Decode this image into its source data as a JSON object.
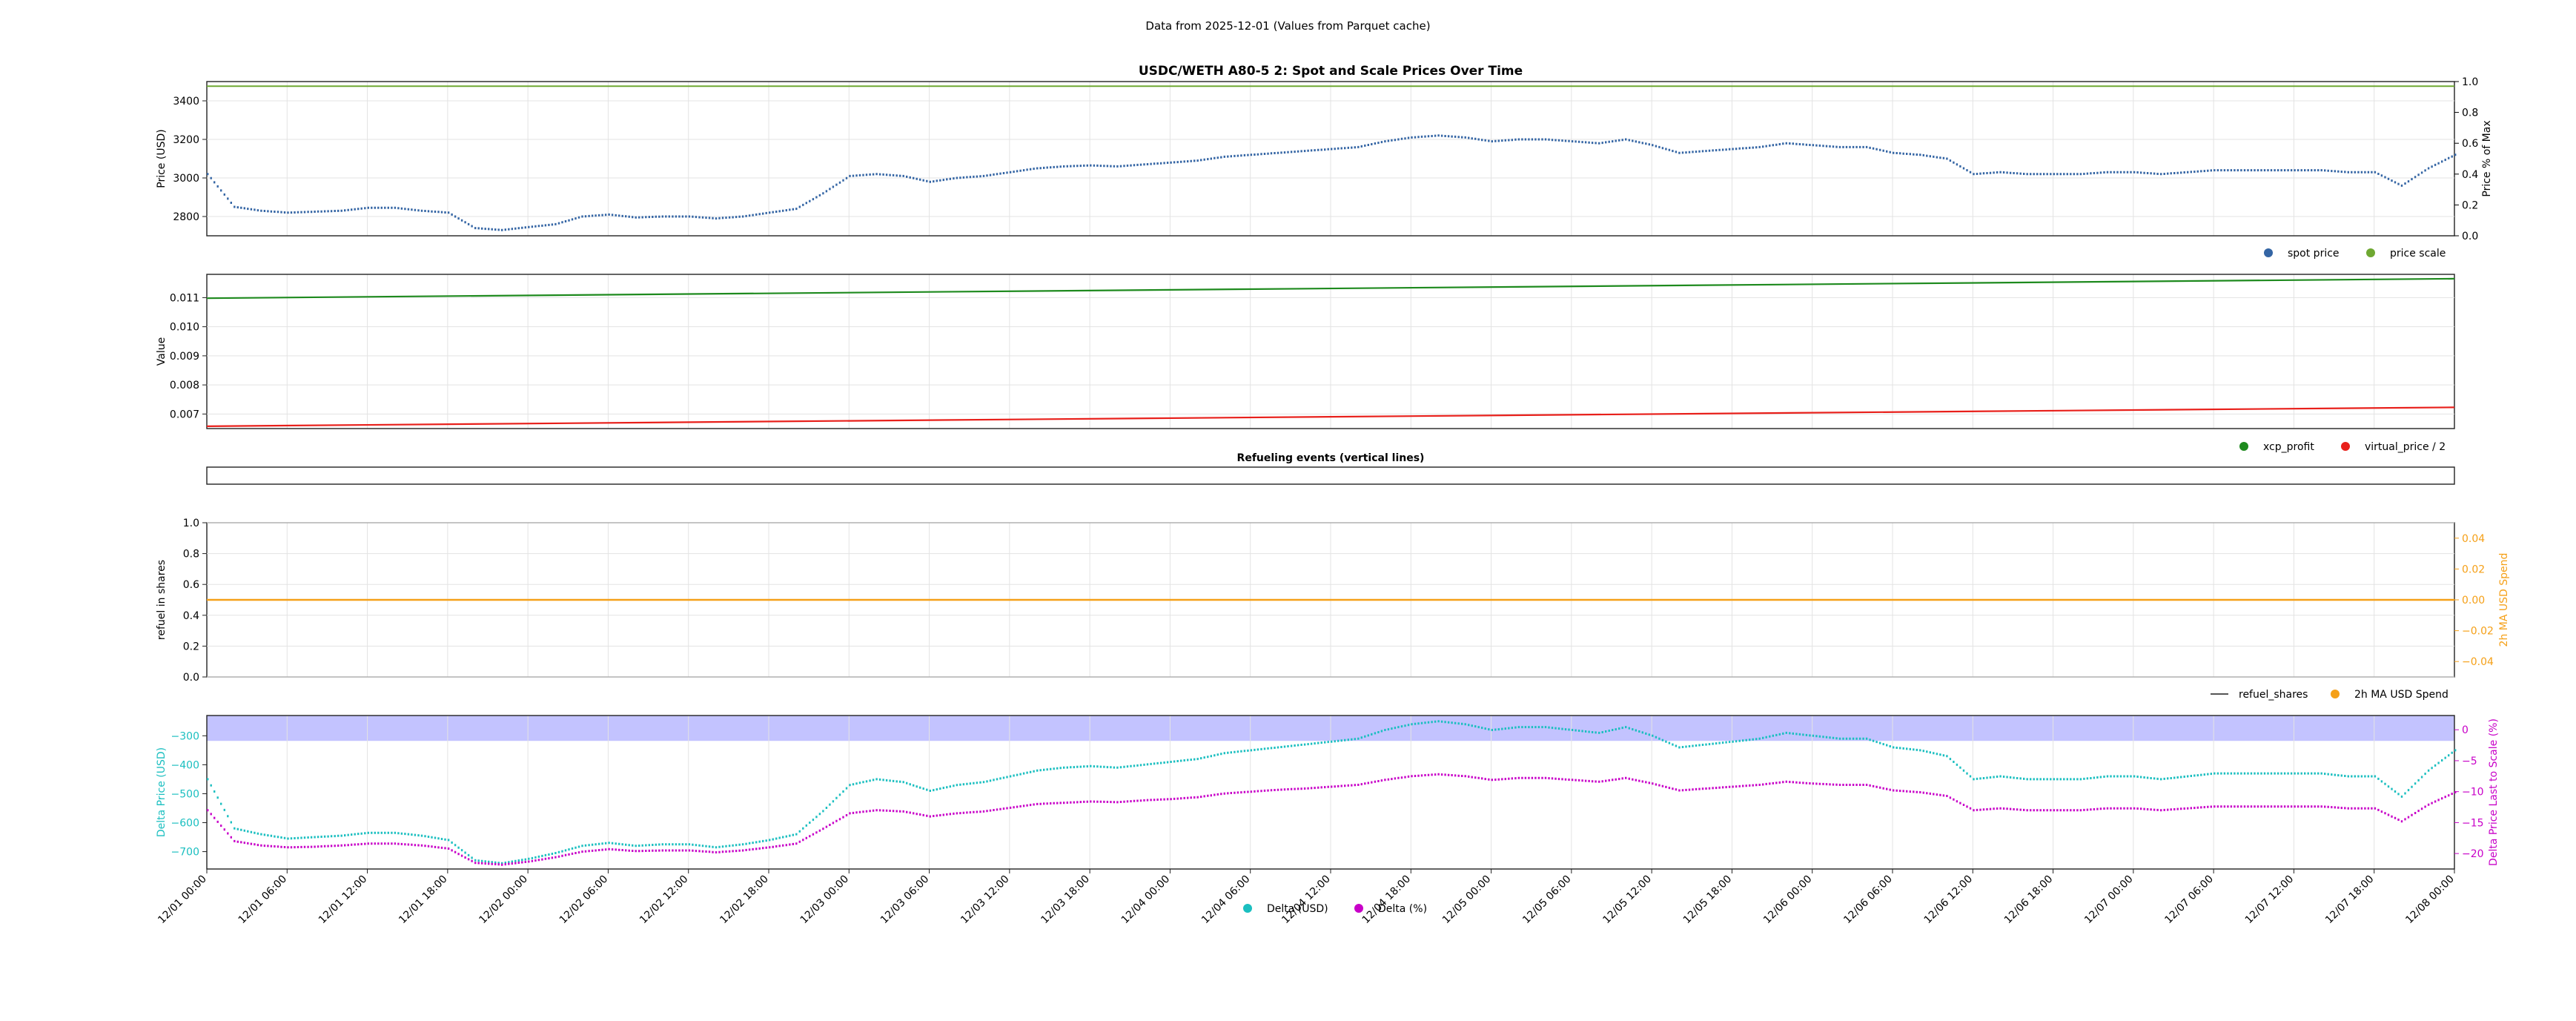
{
  "suptitle": "Data from 2025-12-01 (Values from Parquet cache)",
  "colors": {
    "spot": "#3465a4",
    "scale": "#6fa832",
    "xcp": "#1e8a1e",
    "virtual": "#e8201b",
    "refuel": "#555555",
    "ma_spend": "#f5a018",
    "delta_usd": "#1bbfc0",
    "delta_pct": "#c800c8",
    "band": "#aaaaff"
  },
  "chart_data": [
    {
      "type": "line",
      "title": "USDC/WETH A80-5 2: Spot and Scale Prices Over Time",
      "ylabel": "Price (USD)",
      "ylim": [
        2700,
        3500
      ],
      "yticks": [
        2800,
        3000,
        3200,
        3400
      ],
      "y2label": "Price % of Max",
      "y2lim": [
        0,
        1
      ],
      "y2ticks": [
        "0.0",
        "0.2",
        "0.4",
        "0.6",
        "0.8",
        "1.0"
      ],
      "legend": "bottom-right",
      "series": [
        {
          "name": "spot price",
          "style": "points",
          "x_hours": [
            0,
            2,
            4,
            6,
            8,
            10,
            12,
            14,
            16,
            18,
            20,
            22,
            24,
            26,
            28,
            30,
            32,
            34,
            36,
            38,
            40,
            42,
            44,
            46,
            48,
            50,
            52,
            54,
            56,
            58,
            60,
            62,
            64,
            66,
            68,
            70,
            72,
            74,
            76,
            78,
            80,
            82,
            84,
            86,
            88,
            90,
            92,
            94,
            96,
            98,
            100,
            102,
            104,
            106,
            108,
            110,
            112,
            114,
            116,
            118,
            120,
            122,
            124,
            126,
            128,
            130,
            132,
            134,
            136,
            138,
            140,
            142,
            144,
            146,
            148,
            150,
            152,
            154,
            156,
            158,
            160,
            162,
            164,
            166,
            168
          ],
          "values": [
            3020,
            2850,
            2830,
            2820,
            2825,
            2830,
            2845,
            2845,
            2830,
            2820,
            2740,
            2730,
            2745,
            2760,
            2800,
            2810,
            2795,
            2800,
            2800,
            2790,
            2800,
            2820,
            2840,
            2920,
            3010,
            3020,
            3010,
            2980,
            3000,
            3010,
            3030,
            3050,
            3060,
            3065,
            3060,
            3070,
            3080,
            3090,
            3110,
            3120,
            3130,
            3140,
            3150,
            3160,
            3190,
            3210,
            3220,
            3210,
            3190,
            3200,
            3200,
            3190,
            3180,
            3200,
            3170,
            3130,
            3140,
            3150,
            3160,
            3180,
            3170,
            3160,
            3160,
            3130,
            3120,
            3100,
            3020,
            3030,
            3020,
            3020,
            3020,
            3030,
            3030,
            3020,
            3030,
            3040,
            3040,
            3040,
            3040,
            3040,
            3030,
            3030,
            2960,
            3050,
            3120
          ]
        },
        {
          "name": "price scale",
          "style": "line",
          "values_pct": [
            0.97,
            0.97
          ]
        }
      ]
    },
    {
      "type": "line",
      "ylabel": "Value",
      "ylim": [
        0.0065,
        0.0118
      ],
      "yticks": [
        "0.007",
        "0.008",
        "0.009",
        "0.010",
        "0.011"
      ],
      "legend": "bottom-right",
      "series": [
        {
          "name": "xcp_profit",
          "x_hours": [
            0,
            168
          ],
          "values": [
            0.01098,
            0.01165
          ]
        },
        {
          "name": "virtual_price / 2",
          "x_hours": [
            0,
            168
          ],
          "values": [
            0.00658,
            0.00723
          ]
        }
      ]
    },
    {
      "type": "line",
      "title": "Refueling events (vertical lines)",
      "series": []
    },
    {
      "type": "line",
      "ylabel": "refuel in shares",
      "ylim": [
        0,
        1
      ],
      "yticks": [
        "0.0",
        "0.2",
        "0.4",
        "0.6",
        "0.8",
        "1.0"
      ],
      "y2label": "2h MA USD Spend",
      "y2lim": [
        -0.05,
        0.05
      ],
      "y2ticks": [
        "−0.04",
        "−0.02",
        "0.00",
        "0.02",
        "0.04"
      ],
      "legend": "bottom-right",
      "series": [
        {
          "name": "refuel_shares",
          "x_hours": [],
          "values": []
        },
        {
          "name": "2h MA USD Spend",
          "x_hours": [
            0,
            168
          ],
          "values": [
            0,
            0
          ]
        }
      ]
    },
    {
      "type": "line",
      "ylabel": "Delta Price (USD)",
      "ylim": [
        -760,
        -230
      ],
      "yticks": [
        "−700",
        "−600",
        "−500",
        "−400",
        "−300"
      ],
      "y2label": "Delta Price Last to Scale (%)",
      "y2lim": [
        -22.5,
        2.3
      ],
      "y2ticks": [
        "−20",
        "−15",
        "−10",
        "−5",
        "0"
      ],
      "legend": "bottom-center",
      "band_pct": [
        -1.8,
        2.3
      ],
      "series": [
        {
          "name": "Delta (USD)",
          "x_hours": [
            0,
            2,
            4,
            6,
            8,
            10,
            12,
            14,
            16,
            18,
            20,
            22,
            24,
            26,
            28,
            30,
            32,
            34,
            36,
            38,
            40,
            42,
            44,
            46,
            48,
            50,
            52,
            54,
            56,
            58,
            60,
            62,
            64,
            66,
            68,
            70,
            72,
            74,
            76,
            78,
            80,
            82,
            84,
            86,
            88,
            90,
            92,
            94,
            96,
            98,
            100,
            102,
            104,
            106,
            108,
            110,
            112,
            114,
            116,
            118,
            120,
            122,
            124,
            126,
            128,
            130,
            132,
            134,
            136,
            138,
            140,
            142,
            144,
            146,
            148,
            150,
            152,
            154,
            156,
            158,
            160,
            162,
            164,
            166,
            168
          ],
          "values": [
            -450,
            -620,
            -640,
            -655,
            -650,
            -645,
            -635,
            -635,
            -645,
            -660,
            -730,
            -740,
            -725,
            -705,
            -680,
            -670,
            -680,
            -675,
            -675,
            -685,
            -675,
            -660,
            -640,
            -560,
            -470,
            -450,
            -460,
            -490,
            -470,
            -460,
            -440,
            -420,
            -410,
            -405,
            -410,
            -400,
            -390,
            -380,
            -360,
            -350,
            -340,
            -330,
            -320,
            -310,
            -280,
            -260,
            -250,
            -260,
            -280,
            -270,
            -270,
            -280,
            -290,
            -270,
            -300,
            -340,
            -330,
            -320,
            -310,
            -290,
            -300,
            -310,
            -310,
            -340,
            -350,
            -370,
            -450,
            -440,
            -450,
            -450,
            -450,
            -440,
            -440,
            -450,
            -440,
            -430,
            -430,
            -430,
            -430,
            -430,
            -440,
            -440,
            -510,
            -420,
            -350
          ]
        },
        {
          "name": "Delta (%)",
          "x_hours": [
            0,
            2,
            4,
            6,
            8,
            10,
            12,
            14,
            16,
            18,
            20,
            22,
            24,
            26,
            28,
            30,
            32,
            34,
            36,
            38,
            40,
            42,
            44,
            46,
            48,
            50,
            52,
            54,
            56,
            58,
            60,
            62,
            64,
            66,
            68,
            70,
            72,
            74,
            76,
            78,
            80,
            82,
            84,
            86,
            88,
            90,
            92,
            94,
            96,
            98,
            100,
            102,
            104,
            106,
            108,
            110,
            112,
            114,
            116,
            118,
            120,
            122,
            124,
            126,
            128,
            130,
            132,
            134,
            136,
            138,
            140,
            142,
            144,
            146,
            148,
            150,
            152,
            154,
            156,
            158,
            160,
            162,
            164,
            166,
            168
          ],
          "values": [
            -13.0,
            -18.0,
            -18.7,
            -19.0,
            -18.9,
            -18.7,
            -18.4,
            -18.4,
            -18.7,
            -19.2,
            -21.5,
            -21.8,
            -21.3,
            -20.6,
            -19.7,
            -19.3,
            -19.6,
            -19.5,
            -19.5,
            -19.8,
            -19.5,
            -19.0,
            -18.4,
            -16.0,
            -13.5,
            -13.0,
            -13.2,
            -14.0,
            -13.5,
            -13.2,
            -12.6,
            -12.0,
            -11.8,
            -11.6,
            -11.7,
            -11.4,
            -11.2,
            -10.9,
            -10.3,
            -10.0,
            -9.7,
            -9.5,
            -9.2,
            -8.9,
            -8.1,
            -7.5,
            -7.2,
            -7.5,
            -8.1,
            -7.8,
            -7.8,
            -8.1,
            -8.4,
            -7.8,
            -8.7,
            -9.8,
            -9.5,
            -9.2,
            -8.9,
            -8.4,
            -8.7,
            -8.9,
            -8.9,
            -9.8,
            -10.1,
            -10.7,
            -13.0,
            -12.7,
            -13.0,
            -13.0,
            -13.0,
            -12.7,
            -12.7,
            -13.0,
            -12.7,
            -12.4,
            -12.4,
            -12.4,
            -12.4,
            -12.4,
            -12.7,
            -12.7,
            -14.8,
            -12.1,
            -10.1
          ]
        }
      ]
    }
  ],
  "x_axis": {
    "tick_labels": [
      "12/01 00:00",
      "12/01 06:00",
      "12/01 12:00",
      "12/01 18:00",
      "12/02 00:00",
      "12/02 06:00",
      "12/02 12:00",
      "12/02 18:00",
      "12/03 00:00",
      "12/03 06:00",
      "12/03 12:00",
      "12/03 18:00",
      "12/04 00:00",
      "12/04 06:00",
      "12/04 12:00",
      "12/04 18:00",
      "12/05 00:00",
      "12/05 06:00",
      "12/05 12:00",
      "12/05 18:00",
      "12/06 00:00",
      "12/06 06:00",
      "12/06 12:00",
      "12/06 18:00",
      "12/07 00:00",
      "12/07 06:00",
      "12/07 12:00",
      "12/07 18:00",
      "12/08 00:00"
    ],
    "range_hours": [
      0,
      168
    ]
  }
}
